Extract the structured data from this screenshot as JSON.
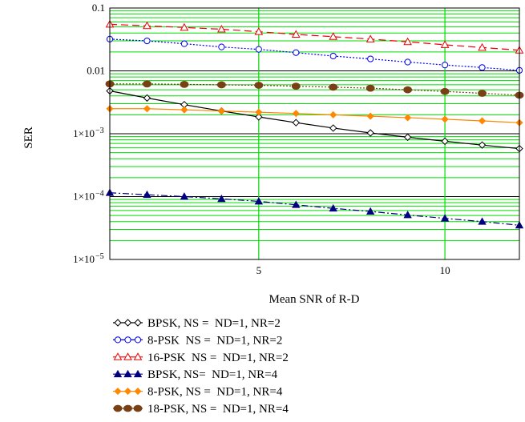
{
  "chart_data": {
    "type": "line",
    "title": "",
    "xlabel": "Mean SNR of R-D",
    "ylabel": "SER",
    "xlim": [
      1,
      12
    ],
    "ylim": [
      1e-05,
      0.1
    ],
    "yscale": "log",
    "grid": true,
    "grid_color": "#00dd00",
    "x_ticks": [
      {
        "value": 5,
        "label": "5"
      },
      {
        "value": 10,
        "label": "10"
      }
    ],
    "y_ticks": [
      {
        "value": 0.1,
        "label": "0.1",
        "sup": ""
      },
      {
        "value": 0.01,
        "label": "0.01",
        "sup": ""
      },
      {
        "value": 0.001,
        "label": "1×10",
        "sup": "−3"
      },
      {
        "value": 0.0001,
        "label": "1×10",
        "sup": "−4"
      },
      {
        "value": 1e-05,
        "label": "1×10",
        "sup": "−5"
      }
    ],
    "legend_position": "bottom-left",
    "x": [
      1,
      2,
      3,
      4,
      5,
      6,
      7,
      8,
      9,
      10,
      11,
      12
    ],
    "series": [
      {
        "name": "BPSK, NS =  ND=1, NR=2",
        "color": "#000000",
        "marker": "diamond-open",
        "dash": "",
        "values": [
          0.0048,
          0.0037,
          0.0029,
          0.0023,
          0.00185,
          0.0015,
          0.00123,
          0.00103,
          0.00088,
          0.00076,
          0.00066,
          0.00058
        ]
      },
      {
        "name": "8-PSK  NS =  ND=1, NR=2",
        "color": "#0000ee",
        "marker": "circle-open",
        "dash": "2,2",
        "values": [
          0.032,
          0.03,
          0.027,
          0.024,
          0.022,
          0.0195,
          0.0172,
          0.0155,
          0.0138,
          0.0124,
          0.0113,
          0.0102
        ]
      },
      {
        "name": "16-PSK  NS =  ND=1, NR=2",
        "color": "#ee0000",
        "marker": "triangle-open",
        "dash": "9,5",
        "values": [
          0.055,
          0.052,
          0.049,
          0.046,
          0.042,
          0.038,
          0.035,
          0.032,
          0.029,
          0.026,
          0.0235,
          0.0213
        ]
      },
      {
        "name": "BPSK, NS=  ND=1, NR=4",
        "color": "#000080",
        "marker": "triangle-filled",
        "dash": "8,3,2,3",
        "values": [
          0.000115,
          0.000107,
          0.0001,
          9.2e-05,
          8.4e-05,
          7.4e-05,
          6.5e-05,
          5.8e-05,
          5.1e-05,
          4.5e-05,
          4e-05,
          3.5e-05
        ]
      },
      {
        "name": "8-PSK, NS =  ND=1, NR=4",
        "color": "#ff8800",
        "marker": "diamond-filled",
        "dash": "",
        "values": [
          0.0025,
          0.0025,
          0.0024,
          0.0023,
          0.0022,
          0.0021,
          0.002,
          0.0019,
          0.0018,
          0.0017,
          0.0016,
          0.0015
        ]
      },
      {
        "name": "18-PSK, NS =  ND=1, NR=4",
        "color": "#7a4015",
        "marker": "ellipse-filled",
        "dash": "2,2",
        "values": [
          0.0062,
          0.0062,
          0.0061,
          0.006,
          0.0059,
          0.0057,
          0.0055,
          0.0053,
          0.005,
          0.0047,
          0.0044,
          0.0041
        ]
      }
    ]
  }
}
